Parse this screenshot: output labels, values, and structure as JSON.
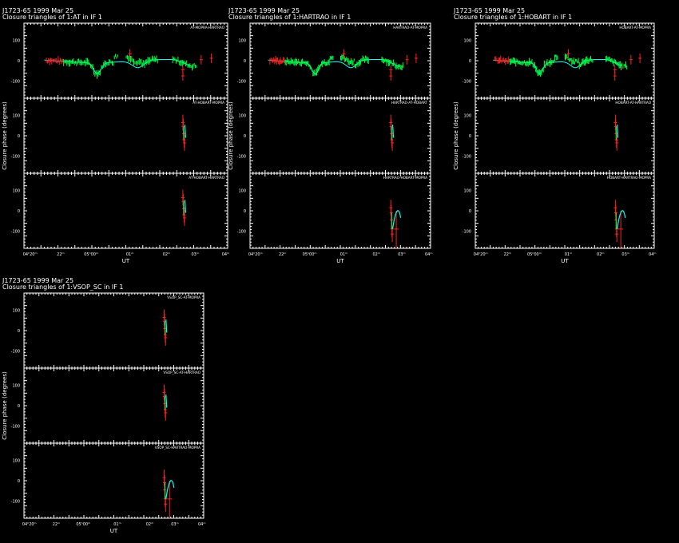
{
  "colors": {
    "background": "#000000",
    "frame": "#ffffff",
    "model": "#00ffff",
    "data_green": "#00ff44",
    "data_red": "#ff2020"
  },
  "chart_data": [
    {
      "type": "scatter",
      "title": "J1723-65  1999 Mar 25",
      "subtitle": "Closure triangles of 1:AT in IF 1",
      "xlabel": "UT",
      "ylabel": "Closure phase  (degrees)",
      "xticks": [
        "04ʰ20ᵐ",
        "22ᵐ",
        "05ʰ00ᵐ",
        "01ᵐ",
        "02ᵐ",
        "03ᵐ",
        "04ᵐ"
      ],
      "yticks": [
        "100",
        "0",
        "-100"
      ],
      "ylim": [
        -180,
        180
      ],
      "panels": [
        {
          "label": "AT-MOPRA-HARTRAO"
        },
        {
          "label": "AT-HOBART-MOPRA"
        },
        {
          "label": "AT-HOBART-HARTRAO"
        }
      ]
    },
    {
      "type": "scatter",
      "title": "J1723-65  1999 Mar 25",
      "subtitle": "Closure triangles of 1:HARTRAO in IF 1",
      "xlabel": "UT",
      "ylabel": "Closure phase  (degrees)",
      "xticks": [
        "04ʰ20ᵐ",
        "22ᵐ",
        "05ʰ00ᵐ",
        "01ᵐ",
        "02ᵐ",
        "03ᵐ",
        "04ᵐ"
      ],
      "yticks": [
        "100",
        "0",
        "-100"
      ],
      "ylim": [
        -180,
        180
      ],
      "panels": [
        {
          "label": "HARTRAO-AT-MOPRA"
        },
        {
          "label": "HARTRAO-AT-HOBART"
        },
        {
          "label": "HARTRAO-HOBART-MOPRA"
        }
      ]
    },
    {
      "type": "scatter",
      "title": "J1723-65  1999 Mar 25",
      "subtitle": "Closure triangles of 1:HOBART in IF 1",
      "xlabel": "UT",
      "ylabel": "Closure phase  (degrees)",
      "xticks": [
        "04ʰ20ᵐ",
        "22ᵐ",
        "05ʰ00ᵐ",
        "01ᵐ",
        "02ᵐ",
        "03ᵐ",
        "04ᵐ"
      ],
      "yticks": [
        "100",
        "0",
        "-100"
      ],
      "ylim": [
        -180,
        180
      ],
      "panels": [
        {
          "label": "HOBART-AT-MOPRA"
        },
        {
          "label": "HOBART-AT-HARTRAO"
        },
        {
          "label": "HOBART-HARTRAO-MOPRA"
        }
      ]
    },
    {
      "type": "scatter",
      "title": "J1723-65  1999 Mar 25",
      "subtitle": "Closure triangles of 1:VSOP_SC in IF 1",
      "xlabel": "UT",
      "ylabel": "Closure phase  (degrees)",
      "xticks": [
        "04ʰ20ᵐ",
        "22ᵐ",
        "05ʰ00ᵐ",
        "01ᵐ",
        "02ᵐ",
        "03ᵐ",
        "04ᵐ"
      ],
      "yticks": [
        "100",
        "0",
        "-100"
      ],
      "ylim": [
        -180,
        180
      ],
      "panels": [
        {
          "label": "VSOP_SC-AT-MOPRA"
        },
        {
          "label": "VSOP_SC-AT-HARTRAO"
        },
        {
          "label": "VSOP_SC-HARTRAO-MOPRA"
        }
      ]
    }
  ]
}
